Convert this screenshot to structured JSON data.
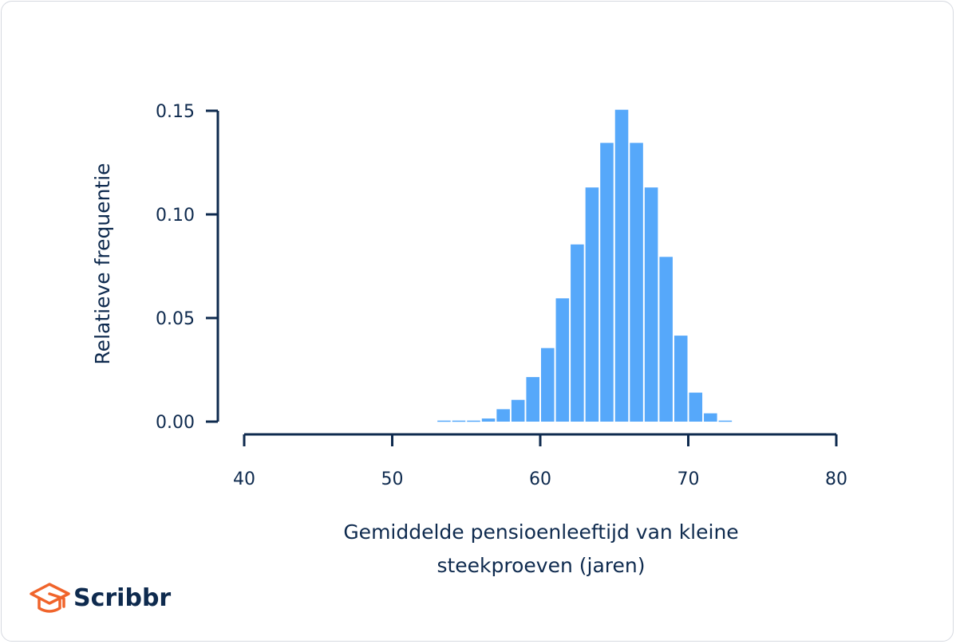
{
  "chart_data": {
    "type": "bar",
    "subtype": "histogram",
    "title": "",
    "xlabel_lines": [
      "Gemiddelde pensioenleeftijd van kleine",
      "steekproeven (jaren)"
    ],
    "ylabel": "Relatieve frequentie",
    "xlim": [
      40,
      80
    ],
    "ylim": [
      0,
      0.15
    ],
    "x_ticks": [
      "40",
      "50",
      "60",
      "70",
      "80"
    ],
    "y_ticks": [
      "0.00",
      "0.05",
      "0.10",
      "0.15"
    ],
    "bin_width": 1,
    "bins": [
      53,
      54,
      55,
      56,
      57,
      58,
      59,
      60,
      61,
      62,
      63,
      64,
      65,
      66,
      67,
      68,
      69,
      70,
      71,
      72
    ],
    "values": [
      0.0005,
      0.0005,
      0.0005,
      0.0015,
      0.006,
      0.0105,
      0.0215,
      0.0355,
      0.0595,
      0.0855,
      0.113,
      0.1345,
      0.1505,
      0.1345,
      0.113,
      0.0795,
      0.0415,
      0.014,
      0.004,
      0.0005
    ],
    "bar_color": "#56a8fa",
    "axis_color": "#0e2a4e",
    "grid": false,
    "legend": "none"
  },
  "brand": {
    "name": "Scribbr",
    "logo_icon": "graduation-cap-icon",
    "logo_color": "#f0642b"
  }
}
